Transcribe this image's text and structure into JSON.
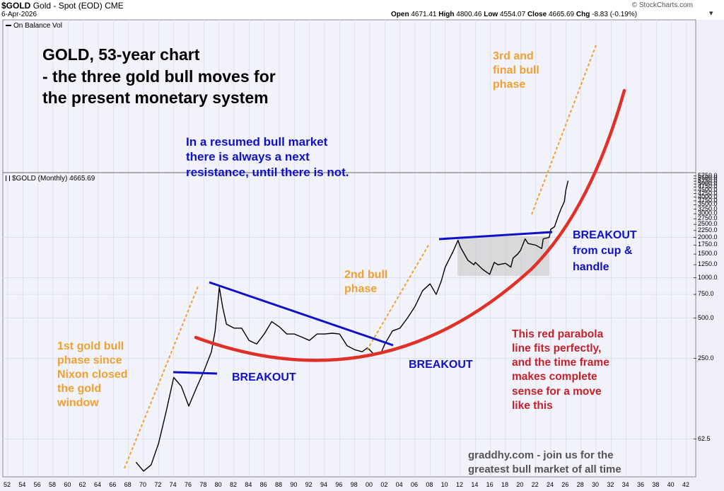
{
  "header": {
    "symbol": "$GOLD",
    "description": "Gold - Spot (EOD)",
    "exchange": "CME",
    "source": "© StockCharts.com",
    "date": "6-Apr-2026",
    "open_label": "Open",
    "open": "4671.41",
    "high_label": "High",
    "high": "4800.46",
    "low_label": "Low",
    "low": "4554.07",
    "close_label": "Close",
    "close": "4665.69",
    "chg_label": "Chg",
    "chg": "-8.83 (-0.19%)"
  },
  "top_panel_label": "On Balance Vol",
  "price_panel_label": "$GOLD (Monthly) 4665.69",
  "annotations": {
    "title": "GOLD, 53-year chart\n- the three gold bull moves for\nthe present monetary system",
    "resistance_note": "In a resumed bull market\nthere is always a next\nresistance, until there is not.",
    "third_phase": "3rd and\nfinal bull\nphase",
    "second_phase": "2nd bull\nphase",
    "first_phase": "1st gold bull\nphase since\nNixon closed\nthe gold\nwindow",
    "breakout_1": "BREAKOUT",
    "breakout_2": "BREAKOUT",
    "breakout_3": "BREAKOUT\nfrom cup &\nhandle",
    "parabola_note": "This red parabola\nline fits perfectly,\nand the time frame\nmakes complete\nsense for a move\nlike this",
    "credit": "graddhy.com - join us for the\ngreatest bull market of all time"
  },
  "chart_data": {
    "type": "line",
    "title": "GOLD, 53-year chart",
    "y_scale": "log",
    "x_labels": [
      "52",
      "54",
      "56",
      "58",
      "60",
      "62",
      "64",
      "66",
      "68",
      "70",
      "72",
      "74",
      "76",
      "78",
      "80",
      "82",
      "84",
      "86",
      "88",
      "90",
      "92",
      "94",
      "96",
      "98",
      "00",
      "02",
      "04",
      "06",
      "08",
      "10",
      "12",
      "14",
      "16",
      "18",
      "20",
      "22",
      "24",
      "26",
      "28",
      "30",
      "32",
      "34",
      "36",
      "38",
      "40",
      "42"
    ],
    "y_tick_labels": [
      "5750.0",
      "5500.0",
      "5250.0",
      "5000.0",
      "4750.0",
      "4500.0",
      "4250.0",
      "4000.0",
      "3750.0",
      "3500.0",
      "3250.0",
      "3000.0",
      "2750.0",
      "2500.0",
      "2250.0",
      "2000.0",
      "1750.0",
      "1500.0",
      "1250.0",
      "1000.0",
      "750.0",
      "500.0",
      "250.0",
      "62.5"
    ],
    "ylim": [
      45,
      6000
    ],
    "xlim": [
      1951,
      2043.5
    ],
    "series": [
      {
        "x": [
          1969,
          1970,
          1971,
          1972,
          1973,
          1974,
          1975,
          1976,
          1977,
          1978,
          1979,
          1979.5,
          1980.05,
          1980.5,
          1981,
          1982,
          1983,
          1984,
          1985,
          1986,
          1987,
          1988,
          1989,
          1990,
          1991,
          1992,
          1993,
          1994,
          1995,
          1996,
          1997,
          1998,
          1999,
          1999.7,
          2000.5,
          2001,
          2001.5,
          2002,
          2003,
          2004,
          2005,
          2006,
          2007,
          2008,
          2008.8,
          2009.5,
          2010,
          2011,
          2011.7,
          2012,
          2013,
          2013.8,
          2014,
          2015,
          2015.9,
          2016.5,
          2017,
          2018,
          2018.7,
          2019,
          2019.6,
          2020,
          2020.6,
          2021,
          2022,
          2022.8,
          2023,
          2023.8,
          2024,
          2024.5,
          2025,
          2025.4,
          2025.8,
          2026,
          2026.3
        ],
        "values": [
          42,
          36,
          40,
          58,
          100,
          180,
          155,
          110,
          150,
          200,
          280,
          400,
          850,
          600,
          450,
          420,
          420,
          340,
          320,
          380,
          470,
          430,
          380,
          380,
          360,
          340,
          380,
          380,
          385,
          380,
          310,
          290,
          280,
          300,
          270,
          270,
          275,
          320,
          400,
          420,
          500,
          610,
          800,
          900,
          750,
          950,
          1200,
          1550,
          1900,
          1700,
          1350,
          1250,
          1300,
          1150,
          1060,
          1300,
          1250,
          1280,
          1200,
          1400,
          1500,
          1600,
          1950,
          1800,
          1750,
          1650,
          1950,
          2000,
          2300,
          2400,
          2900,
          3300,
          3700,
          4500,
          5300
        ]
      }
    ]
  }
}
